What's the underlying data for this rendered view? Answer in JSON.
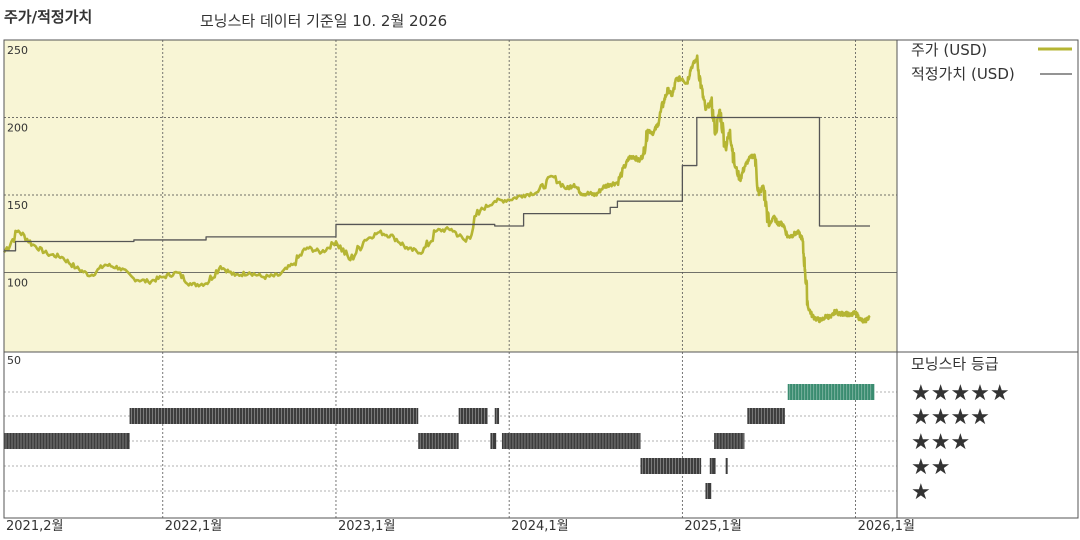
{
  "header": {
    "left_title": "주가/적정가치",
    "subtitle": "모닝스타 데이터 기준일 10. 2월 2026"
  },
  "legend": {
    "price_label": "주가 (USD)",
    "fair_label": "적정가치 (USD)",
    "rating_title": "모닝스타 등급"
  },
  "colors": {
    "price": "#b5b533",
    "fair": "#555555",
    "panel_bg": "#f8f5d5",
    "rating_bar": "#3d3d3d",
    "rating_bar_top": "#3a8c70"
  },
  "chart_data": [
    {
      "type": "line",
      "x_labels": [
        "2021,2월",
        "2022,1월",
        "2023,1월",
        "2024,1월",
        "2025,1월",
        "2026,1월"
      ],
      "x_label_months": [
        0,
        11,
        23,
        35,
        47,
        59
      ],
      "ylim": [
        50,
        250
      ],
      "yticks": [
        50,
        100,
        150,
        200,
        250
      ],
      "grid": true,
      "legend_position": "right",
      "series": [
        {
          "name": "주가 (USD)",
          "months": [
            0,
            1,
            2,
            3,
            4,
            5,
            6,
            7,
            8,
            9,
            10,
            11,
            12,
            13,
            14,
            15,
            16,
            17,
            18,
            19,
            20,
            21,
            22,
            23,
            24,
            25,
            26,
            27,
            28,
            29,
            30,
            31,
            32,
            33,
            34,
            35,
            36,
            37,
            38,
            39,
            39.5,
            40,
            40.5,
            41,
            41.5,
            42,
            42.5,
            43,
            43.3,
            43.6,
            44,
            44.3,
            44.6,
            45,
            45.3,
            45.7,
            46,
            46.3,
            46.6,
            47,
            47.3,
            47.6,
            48,
            48.3,
            48.6,
            49,
            49.3,
            49.6,
            50,
            50.3,
            50.6,
            51,
            51.3,
            51.6,
            52,
            52.3,
            52.6,
            53,
            53.3,
            53.6,
            54,
            54.3,
            54.6,
            55,
            55.3,
            55.5,
            55.7,
            56,
            56.3,
            56.6,
            57,
            57.3,
            57.6,
            58,
            58.3,
            58.6,
            59,
            59.3,
            59.6,
            60
          ],
          "values": [
            113,
            127,
            118,
            112,
            110,
            103,
            98,
            105,
            103,
            96,
            94,
            97,
            100,
            92,
            93,
            104,
            98,
            100,
            97,
            98,
            105,
            116,
            113,
            120,
            108,
            121,
            126,
            123,
            115,
            113,
            127,
            128,
            120,
            140,
            146,
            147,
            150,
            152,
            162,
            154,
            157,
            151,
            151,
            150,
            155,
            157,
            158,
            168,
            174,
            175,
            172,
            176,
            192,
            190,
            196,
            210,
            218,
            214,
            225,
            225,
            222,
            232,
            238,
            220,
            205,
            210,
            190,
            205,
            180,
            192,
            170,
            160,
            168,
            173,
            176,
            150,
            156,
            130,
            136,
            132,
            131,
            123,
            124,
            126,
            122,
            102,
            78,
            72,
            70,
            69,
            72,
            71,
            75,
            73,
            74,
            72,
            74,
            70,
            68,
            72
          ]
        },
        {
          "name": "적정가치 (USD)",
          "months": [
            0,
            0.8,
            5.5,
            9,
            14,
            23,
            34,
            36,
            40,
            42,
            42.5,
            43.5,
            47,
            48,
            56.2,
            56.5,
            60
          ],
          "values": [
            114,
            120,
            120,
            121,
            123,
            131,
            130,
            138,
            138,
            142,
            146,
            146,
            169,
            200,
            200,
            130,
            130
          ]
        }
      ]
    },
    {
      "type": "rating_timeline",
      "title": "모닝스타 등급",
      "levels": [
        "★★★★★",
        "★★★★",
        "★★★",
        "★★",
        "★"
      ],
      "segments": [
        {
          "stars": 3,
          "start": 0,
          "end": 8.7
        },
        {
          "stars": 4,
          "start": 8.7,
          "end": 28.7
        },
        {
          "stars": 3,
          "start": 28.7,
          "end": 31.5
        },
        {
          "stars": 4,
          "start": 31.5,
          "end": 33.5
        },
        {
          "stars": 4,
          "start": 34,
          "end": 34.3
        },
        {
          "stars": 3,
          "start": 33.7,
          "end": 34.1
        },
        {
          "stars": 3,
          "start": 34.5,
          "end": 44.1
        },
        {
          "stars": 2,
          "start": 44.1,
          "end": 48.3
        },
        {
          "stars": 1,
          "start": 48.6,
          "end": 49
        },
        {
          "stars": 2,
          "start": 48.9,
          "end": 49.3
        },
        {
          "stars": 2,
          "start": 50,
          "end": 50.1
        },
        {
          "stars": 3,
          "start": 49.2,
          "end": 51.3
        },
        {
          "stars": 4,
          "start": 51.5,
          "end": 54.1
        },
        {
          "stars": 5,
          "start": 54.3,
          "end": 60.3
        }
      ]
    }
  ]
}
